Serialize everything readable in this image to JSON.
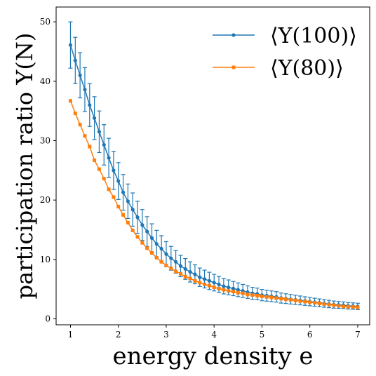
{
  "chart_data": {
    "type": "line",
    "title": "",
    "xlabel": "energy density e",
    "ylabel": "participation ratio Y(N)",
    "xlim": [
      0.7,
      7.25
    ],
    "ylim": [
      -1,
      52.5
    ],
    "xticks": [
      1,
      2,
      3,
      4,
      5,
      6,
      7
    ],
    "yticks": [
      0,
      10,
      20,
      30,
      40,
      50
    ],
    "grid": false,
    "legend_position": "top-right",
    "series": [
      {
        "name": "⟨Y(100)⟩",
        "color": "#1f77b4",
        "marker": "circle",
        "error_bars": true,
        "x": [
          1.0,
          1.1,
          1.2,
          1.3,
          1.4,
          1.5,
          1.6,
          1.7,
          1.8,
          1.9,
          2.0,
          2.1,
          2.2,
          2.3,
          2.4,
          2.5,
          2.6,
          2.7,
          2.8,
          2.9,
          3.0,
          3.1,
          3.2,
          3.3,
          3.4,
          3.5,
          3.6,
          3.7,
          3.8,
          3.9,
          4.0,
          4.1,
          4.2,
          4.3,
          4.4,
          4.5,
          4.6,
          4.7,
          4.8,
          4.9,
          5.0,
          5.1,
          5.2,
          5.3,
          5.4,
          5.5,
          5.6,
          5.7,
          5.8,
          5.9,
          6.0,
          6.1,
          6.2,
          6.3,
          6.4,
          6.5,
          6.6,
          6.7,
          6.8,
          6.9,
          7.0
        ],
        "y": [
          46.1,
          43.5,
          41.0,
          38.6,
          36.0,
          33.8,
          31.5,
          29.3,
          27.1,
          25.0,
          23.2,
          21.3,
          19.8,
          18.4,
          17.1,
          15.8,
          14.7,
          13.6,
          12.6,
          11.8,
          10.9,
          10.2,
          9.6,
          8.9,
          8.4,
          7.9,
          7.5,
          7.0,
          6.7,
          6.4,
          6.1,
          5.8,
          5.5,
          5.3,
          5.1,
          4.9,
          4.7,
          4.5,
          4.3,
          4.2,
          4.0,
          3.9,
          3.8,
          3.7,
          3.5,
          3.4,
          3.3,
          3.2,
          3.1,
          3.0,
          2.9,
          2.8,
          2.7,
          2.6,
          2.5,
          2.4,
          2.35,
          2.3,
          2.2,
          2.15,
          2.1
        ],
        "yerr": [
          3.9,
          3.9,
          3.8,
          3.7,
          3.6,
          3.6,
          3.5,
          3.4,
          3.3,
          3.2,
          3.1,
          3.0,
          2.9,
          2.8,
          2.7,
          2.6,
          2.5,
          2.4,
          2.3,
          2.2,
          2.1,
          2.0,
          1.9,
          1.8,
          1.75,
          1.7,
          1.6,
          1.55,
          1.5,
          1.45,
          1.4,
          1.35,
          1.3,
          1.25,
          1.2,
          1.15,
          1.1,
          1.05,
          1.0,
          0.98,
          0.95,
          0.92,
          0.9,
          0.88,
          0.85,
          0.82,
          0.8,
          0.78,
          0.75,
          0.72,
          0.7,
          0.68,
          0.66,
          0.64,
          0.62,
          0.6,
          0.58,
          0.56,
          0.55,
          0.54,
          0.53
        ]
      },
      {
        "name": "⟨Y(80)⟩",
        "color": "#ff7f0e",
        "marker": "square",
        "error_bars": false,
        "x": [
          1.0,
          1.1,
          1.2,
          1.3,
          1.4,
          1.5,
          1.6,
          1.7,
          1.8,
          1.9,
          2.0,
          2.1,
          2.2,
          2.3,
          2.4,
          2.5,
          2.6,
          2.7,
          2.8,
          2.9,
          3.0,
          3.1,
          3.2,
          3.3,
          3.4,
          3.5,
          3.6,
          3.7,
          3.8,
          3.9,
          4.0,
          4.1,
          4.2,
          4.3,
          4.4,
          4.5,
          4.6,
          4.7,
          4.8,
          4.9,
          5.0,
          5.1,
          5.2,
          5.3,
          5.4,
          5.5,
          5.6,
          5.7,
          5.8,
          5.9,
          6.0,
          6.1,
          6.2,
          6.3,
          6.4,
          6.5,
          6.6,
          6.7,
          6.8,
          6.9,
          7.0
        ],
        "y": [
          36.7,
          34.6,
          32.7,
          30.8,
          29.0,
          26.7,
          25.2,
          23.6,
          21.8,
          20.5,
          18.9,
          17.5,
          16.2,
          14.9,
          13.8,
          12.8,
          11.9,
          11.1,
          10.3,
          9.6,
          9.0,
          8.5,
          8.0,
          7.6,
          7.1,
          6.8,
          6.4,
          6.1,
          5.8,
          5.6,
          5.3,
          5.1,
          4.9,
          4.7,
          4.6,
          4.4,
          4.3,
          4.1,
          4.0,
          3.9,
          3.8,
          3.7,
          3.6,
          3.5,
          3.4,
          3.3,
          3.2,
          3.1,
          3.0,
          2.9,
          2.8,
          2.7,
          2.6,
          2.5,
          2.4,
          2.3,
          2.2,
          2.1,
          2.05,
          2.0,
          1.95
        ]
      }
    ]
  }
}
